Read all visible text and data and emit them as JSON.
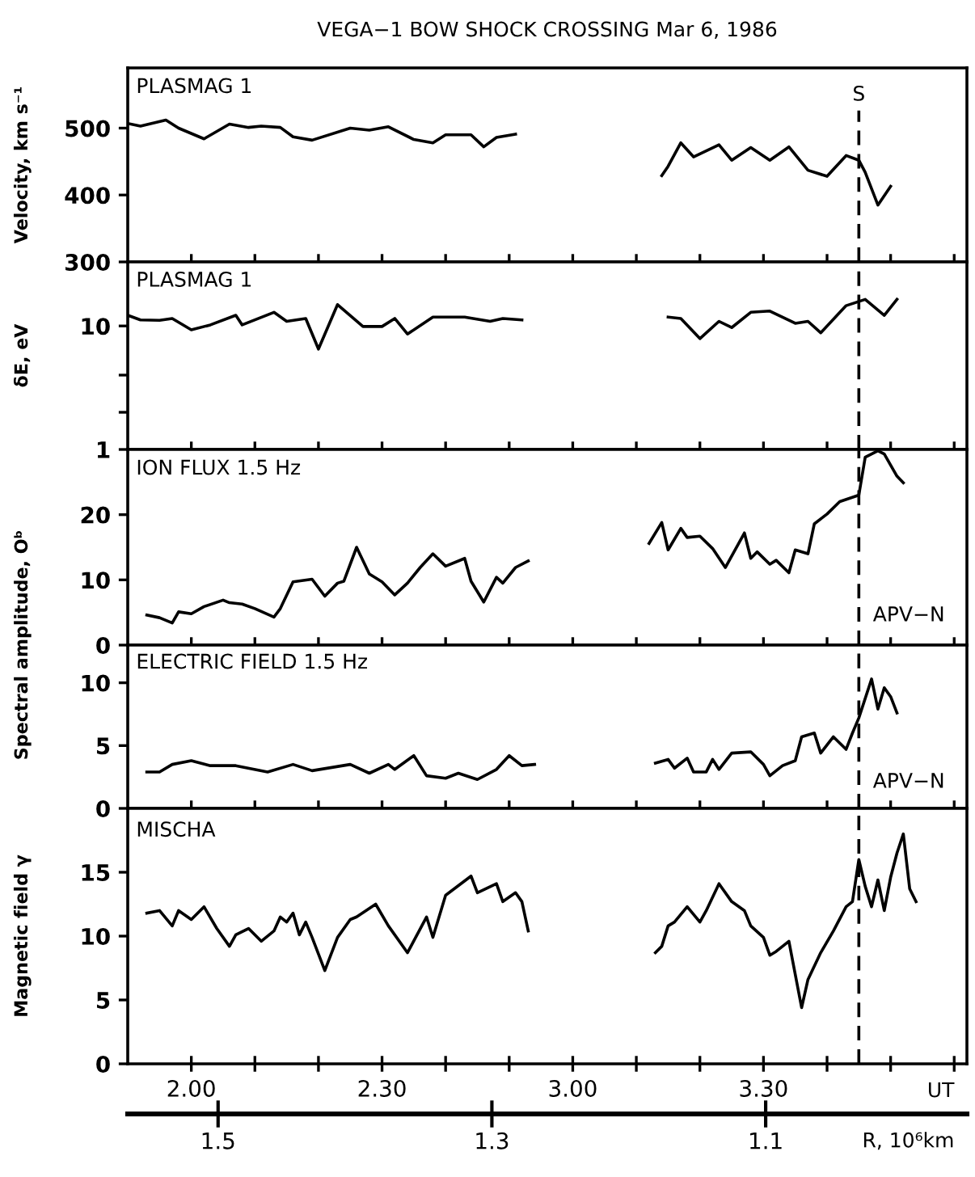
{
  "chart_data": [
    {
      "type": "line",
      "title": "VEGA−1 BOW SHOCK CROSSING Mar 6, 1986",
      "ylabel": "Velocity, km s⁻¹",
      "annotations": [
        "PLASMAG 1"
      ],
      "xlim": [
        "1986-03-06T01:50",
        "1986-03-06T04:02"
      ],
      "xticks": [
        {
          "value": "1986-03-06T02:00",
          "label": null
        },
        {
          "value": "1986-03-06T02:10",
          "label": null
        },
        {
          "value": "1986-03-06T02:20",
          "label": null
        },
        {
          "value": "1986-03-06T02:30",
          "label": null
        },
        {
          "value": "1986-03-06T02:40",
          "label": null
        },
        {
          "value": "1986-03-06T02:50",
          "label": null
        },
        {
          "value": "1986-03-06T03:00",
          "label": null
        },
        {
          "value": "1986-03-06T03:10",
          "label": null
        },
        {
          "value": "1986-03-06T03:20",
          "label": null
        },
        {
          "value": "1986-03-06T03:30",
          "label": null
        },
        {
          "value": "1986-03-06T03:40",
          "label": null
        },
        {
          "value": "1986-03-06T03:50",
          "label": null
        },
        {
          "value": "1986-03-06T04:00",
          "label": null
        }
      ],
      "ylim": [
        300,
        590
      ],
      "yticks": [
        300,
        400,
        500
      ],
      "tick_labels": "y",
      "grid": false,
      "ref_lines": [
        {
          "axis": "x",
          "value": "1986-03-06T03:45",
          "label": "S",
          "line_style": "dashed",
          "color": "#000000"
        }
      ],
      "series": [
        {
          "color": "#000000",
          "x": [
            "1986-03-06T01:50",
            "1986-03-06T01:52",
            "1986-03-06T01:56",
            "1986-03-06T01:58",
            "1986-03-06T02:02",
            "1986-03-06T02:06",
            "1986-03-06T02:09",
            "1986-03-06T02:11",
            "1986-03-06T02:14",
            "1986-03-06T02:16",
            "1986-03-06T02:19",
            "1986-03-06T02:25",
            "1986-03-06T02:28",
            "1986-03-06T02:31",
            "1986-03-06T02:35",
            "1986-03-06T02:38",
            "1986-03-06T02:40",
            "1986-03-06T02:44",
            "1986-03-06T02:46",
            "1986-03-06T02:48",
            "1986-03-06T02:51",
            "1986-03-06T03:00",
            "1986-03-06T03:14",
            "1986-03-06T03:15",
            "1986-03-06T03:17",
            "1986-03-06T03:19",
            "1986-03-06T03:23",
            "1986-03-06T03:25",
            "1986-03-06T03:28",
            "1986-03-06T03:31",
            "1986-03-06T03:34",
            "1986-03-06T03:37",
            "1986-03-06T03:40",
            "1986-03-06T03:43",
            "1986-03-06T03:45",
            "1986-03-06T03:46",
            "1986-03-06T03:48",
            "1986-03-06T03:50"
          ],
          "values": [
            507,
            503,
            512,
            500,
            484,
            506,
            501,
            503,
            501,
            487,
            482,
            500,
            497,
            502,
            483,
            478,
            490,
            490,
            472,
            486,
            491,
            null,
            429,
            443,
            478,
            457,
            475,
            452,
            471,
            452,
            472,
            437,
            428,
            459,
            452,
            434,
            385,
            413
          ]
        }
      ]
    },
    {
      "type": "line",
      "ylabel": "δE, eV",
      "annotations": [
        "PLASMAG 1"
      ],
      "log": "y",
      "xlim": [
        "1986-03-06T01:50",
        "1986-03-06T04:02"
      ],
      "xticks": [
        {
          "value": "1986-03-06T02:00",
          "label": null
        },
        {
          "value": "1986-03-06T02:10",
          "label": null
        },
        {
          "value": "1986-03-06T02:20",
          "label": null
        },
        {
          "value": "1986-03-06T02:30",
          "label": null
        },
        {
          "value": "1986-03-06T02:40",
          "label": null
        },
        {
          "value": "1986-03-06T02:50",
          "label": null
        },
        {
          "value": "1986-03-06T03:00",
          "label": null
        },
        {
          "value": "1986-03-06T03:10",
          "label": null
        },
        {
          "value": "1986-03-06T03:20",
          "label": null
        },
        {
          "value": "1986-03-06T03:30",
          "label": null
        },
        {
          "value": "1986-03-06T03:40",
          "label": null
        },
        {
          "value": "1986-03-06T03:50",
          "label": null
        },
        {
          "value": "1986-03-06T04:00",
          "label": null
        }
      ],
      "ylim": [
        1,
        33
      ],
      "yticks": [
        1,
        {
          "value": 2,
          "label": null
        },
        {
          "value": 4,
          "label": null
        },
        10
      ],
      "tick_labels": "y",
      "grid": false,
      "ref_lines": [
        {
          "axis": "x",
          "value": "1986-03-06T03:45",
          "line_style": "dashed",
          "color": "#000000"
        }
      ],
      "series": [
        {
          "color": "#000000",
          "x": [
            "1986-03-06T01:50",
            "1986-03-06T01:52",
            "1986-03-06T01:55",
            "1986-03-06T01:57",
            "1986-03-06T02:00",
            "1986-03-06T02:03",
            "1986-03-06T02:07",
            "1986-03-06T02:08",
            "1986-03-06T02:13",
            "1986-03-06T02:15",
            "1986-03-06T02:18",
            "1986-03-06T02:20",
            "1986-03-06T02:23",
            "1986-03-06T02:27",
            "1986-03-06T02:30",
            "1986-03-06T02:32",
            "1986-03-06T02:34",
            "1986-03-06T02:38",
            "1986-03-06T02:43",
            "1986-03-06T02:47",
            "1986-03-06T02:49",
            "1986-03-06T02:52",
            "1986-03-06T03:00",
            "1986-03-06T03:15",
            "1986-03-06T03:17",
            "1986-03-06T03:20",
            "1986-03-06T03:23",
            "1986-03-06T03:25",
            "1986-03-06T03:28",
            "1986-03-06T03:31",
            "1986-03-06T03:35",
            "1986-03-06T03:37",
            "1986-03-06T03:39",
            "1986-03-06T03:43",
            "1986-03-06T03:46",
            "1986-03-06T03:49",
            "1986-03-06T03:51"
          ],
          "values": [
            12.2,
            11.2,
            11.1,
            11.5,
            9.3,
            10.2,
            12.2,
            10.2,
            12.9,
            10.9,
            11.5,
            6.5,
            14.9,
            9.9,
            9.9,
            11.5,
            8.6,
            11.8,
            11.8,
            10.9,
            11.5,
            11.2,
            null,
            11.8,
            11.5,
            7.9,
            10.9,
            9.7,
            12.9,
            13.2,
            10.5,
            10.9,
            8.8,
            14.6,
            16.4,
            12.2,
            16.4
          ]
        }
      ]
    },
    {
      "type": "line",
      "ylabel": "Spectral amplitude, Oᵇ",
      "annotations": [
        "ION FLUX 1.5 Hz",
        "APV−N"
      ],
      "xlim": [
        "1986-03-06T01:50",
        "1986-03-06T04:02"
      ],
      "xticks": [
        {
          "value": "1986-03-06T02:00",
          "label": null
        },
        {
          "value": "1986-03-06T02:10",
          "label": null
        },
        {
          "value": "1986-03-06T02:20",
          "label": null
        },
        {
          "value": "1986-03-06T02:30",
          "label": null
        },
        {
          "value": "1986-03-06T02:40",
          "label": null
        },
        {
          "value": "1986-03-06T02:50",
          "label": null
        },
        {
          "value": "1986-03-06T03:00",
          "label": null
        },
        {
          "value": "1986-03-06T03:10",
          "label": null
        },
        {
          "value": "1986-03-06T03:20",
          "label": null
        },
        {
          "value": "1986-03-06T03:30",
          "label": null
        },
        {
          "value": "1986-03-06T03:40",
          "label": null
        },
        {
          "value": "1986-03-06T03:50",
          "label": null
        },
        {
          "value": "1986-03-06T04:00",
          "label": null
        }
      ],
      "ylim": [
        0,
        30
      ],
      "yticks": [
        0,
        10,
        20
      ],
      "tick_labels": "y",
      "grid": false,
      "ref_lines": [
        {
          "axis": "x",
          "value": "1986-03-06T03:45",
          "line_style": "dashed",
          "color": "#000000"
        }
      ],
      "series": [
        {
          "color": "#000000",
          "x": [
            "1986-03-06T01:53",
            "1986-03-06T01:55",
            "1986-03-06T01:57",
            "1986-03-06T01:58",
            "1986-03-06T02:00",
            "1986-03-06T02:02",
            "1986-03-06T02:05",
            "1986-03-06T02:06",
            "1986-03-06T02:08",
            "1986-03-06T02:10",
            "1986-03-06T02:13",
            "1986-03-06T02:14",
            "1986-03-06T02:16",
            "1986-03-06T02:19",
            "1986-03-06T02:21",
            "1986-03-06T02:23",
            "1986-03-06T02:24",
            "1986-03-06T02:26",
            "1986-03-06T02:28",
            "1986-03-06T02:30",
            "1986-03-06T02:32",
            "1986-03-06T02:34",
            "1986-03-06T02:36",
            "1986-03-06T02:38",
            "1986-03-06T02:40",
            "1986-03-06T02:43",
            "1986-03-06T02:44",
            "1986-03-06T02:46",
            "1986-03-06T02:48",
            "1986-03-06T02:49",
            "1986-03-06T02:51",
            "1986-03-06T02:53",
            "1986-03-06T03:00",
            "1986-03-06T03:12",
            "1986-03-06T03:14",
            "1986-03-06T03:15",
            "1986-03-06T03:17",
            "1986-03-06T03:18",
            "1986-03-06T03:20",
            "1986-03-06T03:22",
            "1986-03-06T03:24",
            "1986-03-06T03:27",
            "1986-03-06T03:28",
            "1986-03-06T03:29",
            "1986-03-06T03:31",
            "1986-03-06T03:32",
            "1986-03-06T03:34",
            "1986-03-06T03:35",
            "1986-03-06T03:37",
            "1986-03-06T03:38",
            "1986-03-06T03:40",
            "1986-03-06T03:42",
            "1986-03-06T03:45",
            "1986-03-06T03:46",
            "1986-03-06T03:48",
            "1986-03-06T03:49",
            "1986-03-06T03:51",
            "1986-03-06T03:52"
          ],
          "values": [
            4.6,
            4.2,
            3.4,
            5.1,
            4.8,
            5.9,
            6.9,
            6.5,
            6.3,
            5.6,
            4.3,
            5.6,
            9.7,
            10.1,
            7.5,
            9.5,
            9.8,
            15.0,
            10.9,
            9.7,
            7.7,
            9.5,
            11.9,
            14.0,
            12.1,
            13.3,
            9.8,
            6.6,
            10.4,
            9.5,
            11.9,
            12.9,
            null,
            15.6,
            18.8,
            14.6,
            17.9,
            16.5,
            16.7,
            14.8,
            11.9,
            17.2,
            13.3,
            14.3,
            12.4,
            13.0,
            11.1,
            14.6,
            14.0,
            18.6,
            20.1,
            22.0,
            23.0,
            28.8,
            29.8,
            29.3,
            25.9,
            24.9
          ]
        }
      ]
    },
    {
      "type": "line",
      "annotations": [
        "ELECTRIC FIELD 1.5 Hz",
        "APV−N"
      ],
      "xlim": [
        "1986-03-06T01:50",
        "1986-03-06T04:02"
      ],
      "xticks": [
        {
          "value": "1986-03-06T02:00",
          "label": null
        },
        {
          "value": "1986-03-06T02:10",
          "label": null
        },
        {
          "value": "1986-03-06T02:20",
          "label": null
        },
        {
          "value": "1986-03-06T02:30",
          "label": null
        },
        {
          "value": "1986-03-06T02:40",
          "label": null
        },
        {
          "value": "1986-03-06T02:50",
          "label": null
        },
        {
          "value": "1986-03-06T03:00",
          "label": null
        },
        {
          "value": "1986-03-06T03:10",
          "label": null
        },
        {
          "value": "1986-03-06T03:20",
          "label": null
        },
        {
          "value": "1986-03-06T03:30",
          "label": null
        },
        {
          "value": "1986-03-06T03:40",
          "label": null
        },
        {
          "value": "1986-03-06T03:50",
          "label": null
        },
        {
          "value": "1986-03-06T04:00",
          "label": null
        }
      ],
      "ylim": [
        0,
        13
      ],
      "yticks": [
        0,
        5,
        10
      ],
      "tick_labels": "y",
      "grid": false,
      "ref_lines": [
        {
          "axis": "x",
          "value": "1986-03-06T03:45",
          "line_style": "dashed",
          "color": "#000000"
        }
      ],
      "series": [
        {
          "color": "#000000",
          "x": [
            "1986-03-06T01:53",
            "1986-03-06T01:55",
            "1986-03-06T01:57",
            "1986-03-06T02:00",
            "1986-03-06T02:03",
            "1986-03-06T02:07",
            "1986-03-06T02:12",
            "1986-03-06T02:16",
            "1986-03-06T02:19",
            "1986-03-06T02:25",
            "1986-03-06T02:28",
            "1986-03-06T02:31",
            "1986-03-06T02:32",
            "1986-03-06T02:35",
            "1986-03-06T02:37",
            "1986-03-06T02:40",
            "1986-03-06T02:42",
            "1986-03-06T02:45",
            "1986-03-06T02:48",
            "1986-03-06T02:50",
            "1986-03-06T02:52",
            "1986-03-06T02:54",
            "1986-03-06T03:00",
            "1986-03-06T03:13",
            "1986-03-06T03:15",
            "1986-03-06T03:16",
            "1986-03-06T03:18",
            "1986-03-06T03:19",
            "1986-03-06T03:21",
            "1986-03-06T03:22",
            "1986-03-06T03:23",
            "1986-03-06T03:25",
            "1986-03-06T03:28",
            "1986-03-06T03:30",
            "1986-03-06T03:31",
            "1986-03-06T03:33",
            "1986-03-06T03:35",
            "1986-03-06T03:36",
            "1986-03-06T03:38",
            "1986-03-06T03:39",
            "1986-03-06T03:41",
            "1986-03-06T03:43",
            "1986-03-06T03:44",
            "1986-03-06T03:45",
            "1986-03-06T03:47",
            "1986-03-06T03:48",
            "1986-03-06T03:49",
            "1986-03-06T03:50",
            "1986-03-06T03:51"
          ],
          "values": [
            2.9,
            2.9,
            3.5,
            3.8,
            3.4,
            3.4,
            2.9,
            3.5,
            3.0,
            3.5,
            2.8,
            3.5,
            3.1,
            4.2,
            2.6,
            2.4,
            2.8,
            2.3,
            3.1,
            4.2,
            3.4,
            3.5,
            null,
            3.6,
            3.9,
            3.2,
            4.0,
            2.9,
            2.9,
            3.9,
            3.1,
            4.4,
            4.5,
            3.5,
            2.6,
            3.4,
            3.8,
            5.7,
            6.0,
            4.4,
            5.7,
            4.7,
            6.0,
            7.2,
            10.3,
            7.9,
            9.6,
            8.9,
            7.6
          ]
        }
      ]
    },
    {
      "type": "line",
      "ylabel": "Magnetic field γ",
      "xlabel": "UT",
      "annotations": [
        "MISCHA"
      ],
      "xlim": [
        "1986-03-06T01:50",
        "1986-03-06T04:02"
      ],
      "xticks": [
        {
          "value": "1986-03-06T02:00",
          "label": "2.00"
        },
        {
          "value": "1986-03-06T02:10",
          "label": null
        },
        {
          "value": "1986-03-06T02:20",
          "label": null
        },
        {
          "value": "1986-03-06T02:30",
          "label": "2.30"
        },
        {
          "value": "1986-03-06T02:40",
          "label": null
        },
        {
          "value": "1986-03-06T02:50",
          "label": null
        },
        {
          "value": "1986-03-06T03:00",
          "label": "3.00"
        },
        {
          "value": "1986-03-06T03:10",
          "label": null
        },
        {
          "value": "1986-03-06T03:20",
          "label": null
        },
        {
          "value": "1986-03-06T03:30",
          "label": "3.30"
        },
        {
          "value": "1986-03-06T03:40",
          "label": null
        },
        {
          "value": "1986-03-06T03:50",
          "label": null
        },
        {
          "value": "1986-03-06T04:00",
          "label": null
        }
      ],
      "x2lim": [
        1.566,
        0.953
      ],
      "x2ticks": [
        1.5,
        1.3,
        1.1
      ],
      "x2label": "R, 10⁶km",
      "ylim": [
        0,
        20
      ],
      "yticks": [
        0,
        5,
        10,
        15
      ],
      "grid": false,
      "ref_lines": [
        {
          "axis": "x",
          "value": "1986-03-06T03:45",
          "line_style": "dashed",
          "color": "#000000"
        }
      ],
      "series": [
        {
          "color": "#000000",
          "x": [
            "1986-03-06T01:53",
            "1986-03-06T01:55",
            "1986-03-06T01:57",
            "1986-03-06T01:58",
            "1986-03-06T02:00",
            "1986-03-06T02:02",
            "1986-03-06T02:04",
            "1986-03-06T02:06",
            "1986-03-06T02:07",
            "1986-03-06T02:09",
            "1986-03-06T02:11",
            "1986-03-06T02:13",
            "1986-03-06T02:14",
            "1986-03-06T02:15",
            "1986-03-06T02:16",
            "1986-03-06T02:17",
            "1986-03-06T02:18",
            "1986-03-06T02:19",
            "1986-03-06T02:21",
            "1986-03-06T02:23",
            "1986-03-06T02:25",
            "1986-03-06T02:26",
            "1986-03-06T02:29",
            "1986-03-06T02:31",
            "1986-03-06T02:34",
            "1986-03-06T02:37",
            "1986-03-06T02:38",
            "1986-03-06T02:40",
            "1986-03-06T02:44",
            "1986-03-06T02:45",
            "1986-03-06T02:48",
            "1986-03-06T02:49",
            "1986-03-06T02:51",
            "1986-03-06T02:52",
            "1986-03-06T02:53",
            "1986-03-06T03:00",
            "1986-03-06T03:13",
            "1986-03-06T03:14",
            "1986-03-06T03:15",
            "1986-03-06T03:16",
            "1986-03-06T03:18",
            "1986-03-06T03:20",
            "1986-03-06T03:21",
            "1986-03-06T03:23",
            "1986-03-06T03:25",
            "1986-03-06T03:27",
            "1986-03-06T03:28",
            "1986-03-06T03:30",
            "1986-03-06T03:31",
            "1986-03-06T03:32",
            "1986-03-06T03:34",
            "1986-03-06T03:36",
            "1986-03-06T03:37",
            "1986-03-06T03:39",
            "1986-03-06T03:41",
            "1986-03-06T03:43",
            "1986-03-06T03:44",
            "1986-03-06T03:45",
            "1986-03-06T03:46",
            "1986-03-06T03:47",
            "1986-03-06T03:48",
            "1986-03-06T03:49",
            "1986-03-06T03:50",
            "1986-03-06T03:51",
            "1986-03-06T03:52",
            "1986-03-06T03:53",
            "1986-03-06T03:54"
          ],
          "values": [
            11.8,
            12.0,
            10.8,
            12.0,
            11.3,
            12.3,
            10.6,
            9.2,
            10.1,
            10.6,
            9.6,
            10.4,
            11.5,
            11.1,
            11.8,
            10.1,
            11.1,
            9.9,
            7.3,
            9.9,
            11.3,
            11.5,
            12.5,
            10.8,
            8.7,
            11.5,
            9.9,
            13.2,
            14.7,
            13.4,
            14.1,
            12.7,
            13.4,
            12.7,
            10.4,
            null,
            8.7,
            9.2,
            10.8,
            11.1,
            12.3,
            11.1,
            12.0,
            14.1,
            12.7,
            12.0,
            10.8,
            9.9,
            8.5,
            8.8,
            9.6,
            4.4,
            6.6,
            8.7,
            10.4,
            12.3,
            12.7,
            16.0,
            13.9,
            12.3,
            14.4,
            12.0,
            14.6,
            16.5,
            18.0,
            13.7,
            12.7
          ]
        }
      ]
    }
  ]
}
